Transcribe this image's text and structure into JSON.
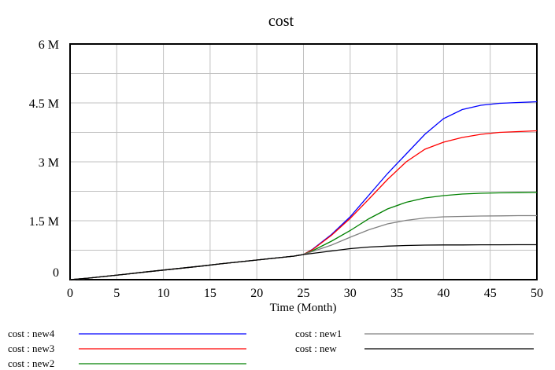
{
  "chart_data": {
    "type": "line",
    "title": "cost",
    "xlabel": "Time (Month)",
    "ylabel": "",
    "xlim": [
      0,
      50
    ],
    "ylim": [
      0,
      6000000
    ],
    "xticks": [
      0,
      5,
      10,
      15,
      20,
      25,
      30,
      35,
      40,
      45,
      50
    ],
    "xtick_labels": [
      "0",
      "5",
      "10",
      "15",
      "20",
      "25",
      "30",
      "35",
      "40",
      "45",
      "50"
    ],
    "yticks": [
      0,
      1500000,
      3000000,
      4500000,
      6000000
    ],
    "ytick_labels": [
      "0",
      "1.5 M",
      "3 M",
      "4.5 M",
      "6 M"
    ],
    "grid": true,
    "legend_position": "bottom",
    "x": [
      0,
      2,
      4,
      6,
      8,
      10,
      12,
      14,
      16,
      18,
      20,
      22,
      24,
      25,
      26,
      28,
      30,
      32,
      34,
      36,
      38,
      40,
      42,
      44,
      46,
      48,
      50
    ],
    "series": [
      {
        "name": "cost : new4",
        "color": "#0000ff",
        "values": [
          0,
          40000,
          90000,
          140000,
          195000,
          245000,
          295000,
          345000,
          400000,
          450000,
          500000,
          550000,
          600000,
          640000,
          780000,
          1150000,
          1600000,
          2150000,
          2700000,
          3200000,
          3700000,
          4100000,
          4330000,
          4440000,
          4490000,
          4510000,
          4530000
        ]
      },
      {
        "name": "cost : new3",
        "color": "#ff0000",
        "values": [
          0,
          40000,
          90000,
          140000,
          195000,
          245000,
          295000,
          345000,
          400000,
          450000,
          500000,
          550000,
          600000,
          640000,
          770000,
          1130000,
          1560000,
          2050000,
          2550000,
          3000000,
          3320000,
          3500000,
          3620000,
          3700000,
          3750000,
          3770000,
          3790000
        ]
      },
      {
        "name": "cost : new2",
        "color": "#008000",
        "values": [
          0,
          40000,
          90000,
          140000,
          195000,
          245000,
          295000,
          345000,
          400000,
          450000,
          500000,
          550000,
          600000,
          640000,
          740000,
          980000,
          1250000,
          1550000,
          1800000,
          1970000,
          2080000,
          2140000,
          2180000,
          2200000,
          2210000,
          2215000,
          2220000
        ]
      },
      {
        "name": "cost : new1",
        "color": "#808080",
        "values": [
          0,
          40000,
          90000,
          140000,
          195000,
          245000,
          295000,
          345000,
          400000,
          450000,
          500000,
          550000,
          600000,
          640000,
          720000,
          880000,
          1080000,
          1270000,
          1420000,
          1510000,
          1570000,
          1600000,
          1610000,
          1620000,
          1625000,
          1630000,
          1630000
        ]
      },
      {
        "name": "cost : new",
        "color": "#000000",
        "values": [
          0,
          40000,
          90000,
          140000,
          195000,
          245000,
          295000,
          345000,
          400000,
          450000,
          500000,
          550000,
          600000,
          640000,
          670000,
          730000,
          790000,
          830000,
          855000,
          870000,
          880000,
          885000,
          885000,
          888000,
          888000,
          890000,
          890000
        ]
      }
    ],
    "legend": {
      "columns": [
        [
          "cost : new4",
          "cost : new3",
          "cost : new2"
        ],
        [
          "cost : new1",
          "cost : new"
        ]
      ]
    }
  }
}
